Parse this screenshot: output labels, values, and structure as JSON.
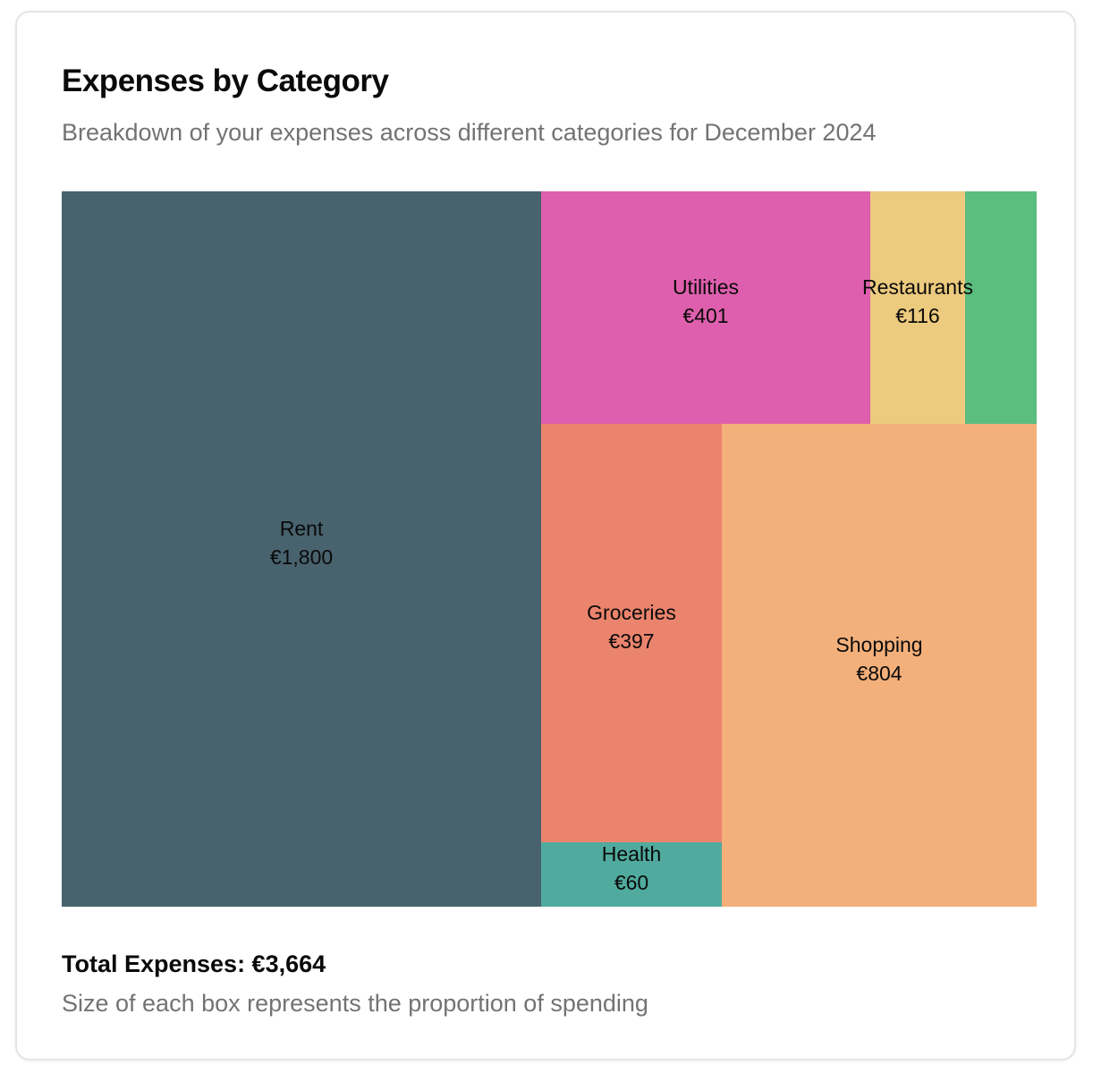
{
  "card": {
    "title": "Expenses by Category",
    "subtitle": "Breakdown of your expenses across different categories for December 2024",
    "total": "Total Expenses: €3,664",
    "note": "Size of each box represents the proportion of spending"
  },
  "chart_data": {
    "type": "treemap",
    "title": "Expenses by Category",
    "currency": "€",
    "total": 3664,
    "items": [
      {
        "name": "Rent",
        "value": 1800,
        "label": "€1,800",
        "color": "#48636e"
      },
      {
        "name": "Utilities",
        "value": 401,
        "label": "€401",
        "color": "#de5fad"
      },
      {
        "name": "Restaurants",
        "value": 116,
        "label": "€116",
        "color": "#ecca7e"
      },
      {
        "name": "",
        "value": 86,
        "label": "",
        "color": "#5bbd80"
      },
      {
        "name": "Groceries",
        "value": 397,
        "label": "€397",
        "color": "#eb846d"
      },
      {
        "name": "Health",
        "value": 60,
        "label": "€60",
        "color": "#50ab9e"
      },
      {
        "name": "Shopping",
        "value": 804,
        "label": "€804",
        "color": "#f4b07a"
      }
    ]
  }
}
